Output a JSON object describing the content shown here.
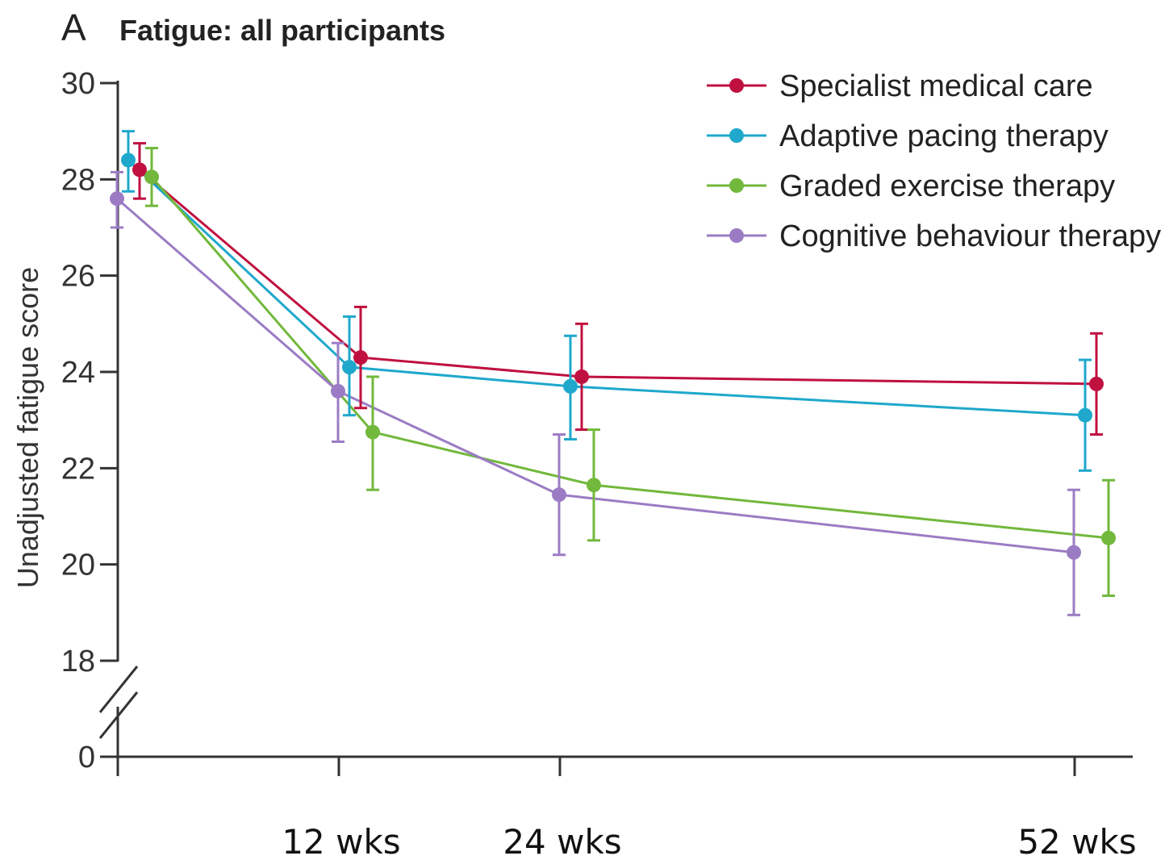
{
  "panel_letter": "A",
  "chart_data": {
    "type": "line",
    "title": "Fatigue: all participants",
    "xlabel": "",
    "ylabel": "Unadjusted fatigue score",
    "y_ticks": [
      {
        "value": 30,
        "label": "30"
      },
      {
        "value": 28,
        "label": "28"
      },
      {
        "value": 26,
        "label": "26"
      },
      {
        "value": 24,
        "label": "24"
      },
      {
        "value": 22,
        "label": "22"
      },
      {
        "value": 20,
        "label": "20"
      },
      {
        "value": 18,
        "label": "18"
      },
      {
        "value": 0,
        "label": "0"
      }
    ],
    "ylim": [
      18,
      30
    ],
    "axis_break": true,
    "x": [
      0,
      12,
      24,
      52
    ],
    "x_tick_labels": [
      "",
      "12 wks",
      "24 wks",
      "52 wks"
    ],
    "legend_position": "top-right",
    "grid": false,
    "series": [
      {
        "name": "Specialist medical care",
        "color": "#c0103f",
        "values": [
          28.2,
          24.3,
          23.9,
          23.75
        ],
        "err_low": [
          27.6,
          23.25,
          22.8,
          22.7
        ],
        "err_high": [
          28.75,
          25.35,
          25.0,
          24.8
        ]
      },
      {
        "name": "Adaptive pacing therapy",
        "color": "#1fa8cc",
        "values": [
          28.4,
          24.1,
          23.7,
          23.1
        ],
        "err_low": [
          27.75,
          23.1,
          22.6,
          21.95
        ],
        "err_high": [
          29.0,
          25.15,
          24.75,
          24.25
        ]
      },
      {
        "name": "Graded exercise therapy",
        "color": "#72b83c",
        "values": [
          28.05,
          22.75,
          21.65,
          20.55
        ],
        "err_low": [
          27.45,
          21.55,
          20.5,
          19.35
        ],
        "err_high": [
          28.65,
          23.9,
          22.8,
          21.75
        ]
      },
      {
        "name": "Cognitive behaviour therapy",
        "color": "#9b7cc4",
        "values": [
          27.6,
          23.6,
          21.45,
          20.25
        ],
        "err_low": [
          27.0,
          22.55,
          20.2,
          18.95
        ],
        "err_high": [
          28.15,
          24.6,
          22.7,
          21.55
        ]
      }
    ]
  }
}
